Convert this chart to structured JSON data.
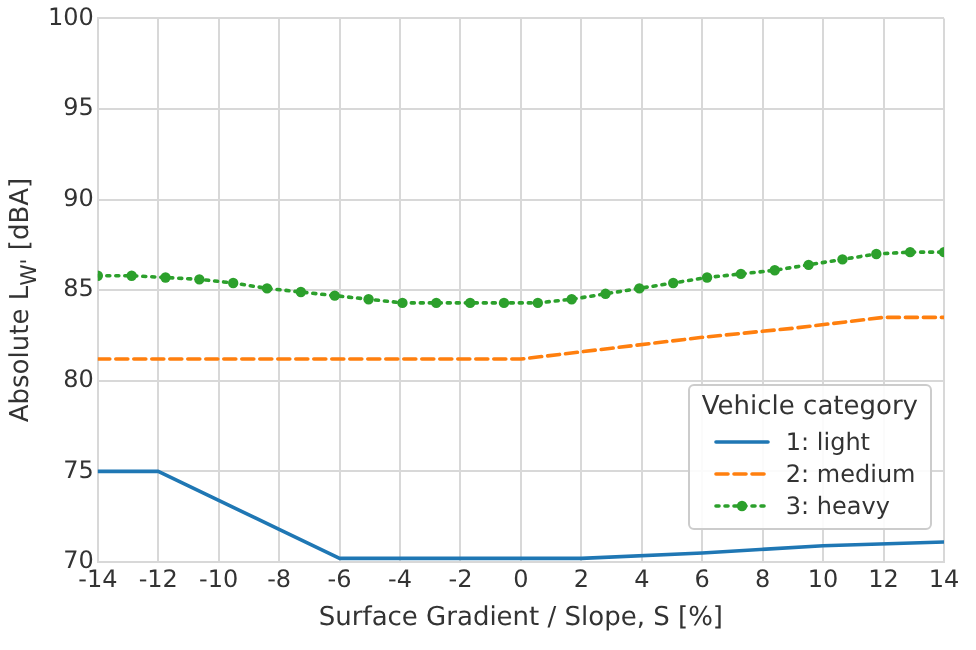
{
  "chart_data": {
    "type": "line",
    "xlabel": "Surface Gradient / Slope, S [%]",
    "ylabel": "Absolute L$_{W'}$ [dBA]",
    "legend_title": "Vehicle category",
    "legend": "bottom right",
    "grid": true,
    "xlim": [
      -14,
      14
    ],
    "xticks": [
      -14,
      -12,
      -10,
      -8,
      -6,
      -4,
      -2,
      0,
      2,
      4,
      6,
      8,
      10,
      12,
      14
    ],
    "ylim": [
      70,
      100
    ],
    "yticks": [
      70,
      75,
      80,
      85,
      90,
      95,
      100
    ],
    "series": [
      {
        "name": "1: light",
        "color": "#1f77b4",
        "line_style": "solid",
        "marker": "none",
        "x": [
          -14,
          -12,
          -10,
          -8,
          -6,
          2,
          6,
          10,
          14
        ],
        "values": [
          75,
          75,
          73.4,
          71.8,
          70.2,
          70.2,
          70.5,
          70.9,
          71.1
        ]
      },
      {
        "name": "2: medium",
        "color": "#ff7f0e",
        "line_style": "dashed",
        "marker": "none",
        "x": [
          -14,
          0,
          3,
          6,
          9,
          12,
          14
        ],
        "values": [
          81.2,
          81.2,
          81.8,
          82.4,
          82.9,
          83.5,
          83.5
        ]
      },
      {
        "name": "3: heavy",
        "color": "#2ca02c",
        "line_style": "dotted",
        "marker": "circle",
        "x": [
          -14,
          -12.88,
          -11.76,
          -10.64,
          -9.52,
          -8.4,
          -7.28,
          -6.16,
          -5.04,
          -3.92,
          -2.8,
          -1.68,
          -0.56,
          0.56,
          1.68,
          2.8,
          3.92,
          5.04,
          6.16,
          7.28,
          8.4,
          9.52,
          10.64,
          11.76,
          12.88,
          14
        ],
        "values": [
          85.8,
          85.8,
          85.7,
          85.6,
          85.4,
          85.1,
          84.9,
          84.7,
          84.5,
          84.3,
          84.3,
          84.3,
          84.3,
          84.3,
          84.5,
          84.8,
          85.1,
          85.4,
          85.7,
          85.9,
          86.1,
          86.4,
          86.7,
          87.0,
          87.1,
          87.1
        ]
      }
    ]
  }
}
